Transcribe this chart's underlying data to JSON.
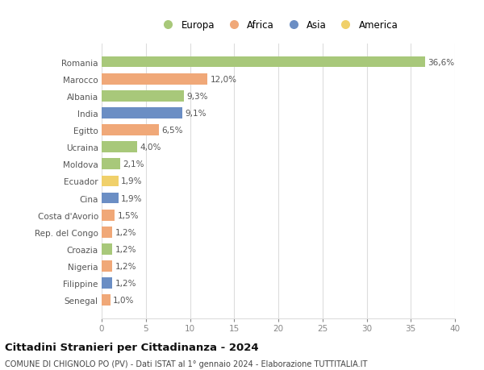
{
  "categories": [
    "Senegal",
    "Filippine",
    "Nigeria",
    "Croazia",
    "Rep. del Congo",
    "Costa d'Avorio",
    "Cina",
    "Ecuador",
    "Moldova",
    "Ucraina",
    "Egitto",
    "India",
    "Albania",
    "Marocco",
    "Romania"
  ],
  "values": [
    1.0,
    1.2,
    1.2,
    1.2,
    1.2,
    1.5,
    1.9,
    1.9,
    2.1,
    4.0,
    6.5,
    9.1,
    9.3,
    12.0,
    36.6
  ],
  "labels": [
    "1,0%",
    "1,2%",
    "1,2%",
    "1,2%",
    "1,2%",
    "1,5%",
    "1,9%",
    "1,9%",
    "2,1%",
    "4,0%",
    "6,5%",
    "9,1%",
    "9,3%",
    "12,0%",
    "36,6%"
  ],
  "colors": [
    "#f0a878",
    "#6b8ec4",
    "#f0a878",
    "#a8c87a",
    "#f0a878",
    "#f0a878",
    "#6b8ec4",
    "#f0d06a",
    "#a8c87a",
    "#a8c87a",
    "#f0a878",
    "#6b8ec4",
    "#a8c87a",
    "#f0a878",
    "#a8c87a"
  ],
  "legend_labels": [
    "Europa",
    "Africa",
    "Asia",
    "America"
  ],
  "legend_colors": [
    "#a8c87a",
    "#f0a878",
    "#6b8ec4",
    "#f0d06a"
  ],
  "xlim": [
    0,
    40
  ],
  "xticks": [
    0,
    5,
    10,
    15,
    20,
    25,
    30,
    35,
    40
  ],
  "title": "Cittadini Stranieri per Cittadinanza - 2024",
  "subtitle": "COMUNE DI CHIGNOLO PO (PV) - Dati ISTAT al 1° gennaio 2024 - Elaborazione TUTTITALIA.IT",
  "bg_color": "#ffffff",
  "grid_color": "#dddddd",
  "bar_height": 0.65,
  "label_fontsize": 7.5,
  "tick_fontsize": 7.5,
  "title_fontsize": 9.5,
  "subtitle_fontsize": 7.0
}
